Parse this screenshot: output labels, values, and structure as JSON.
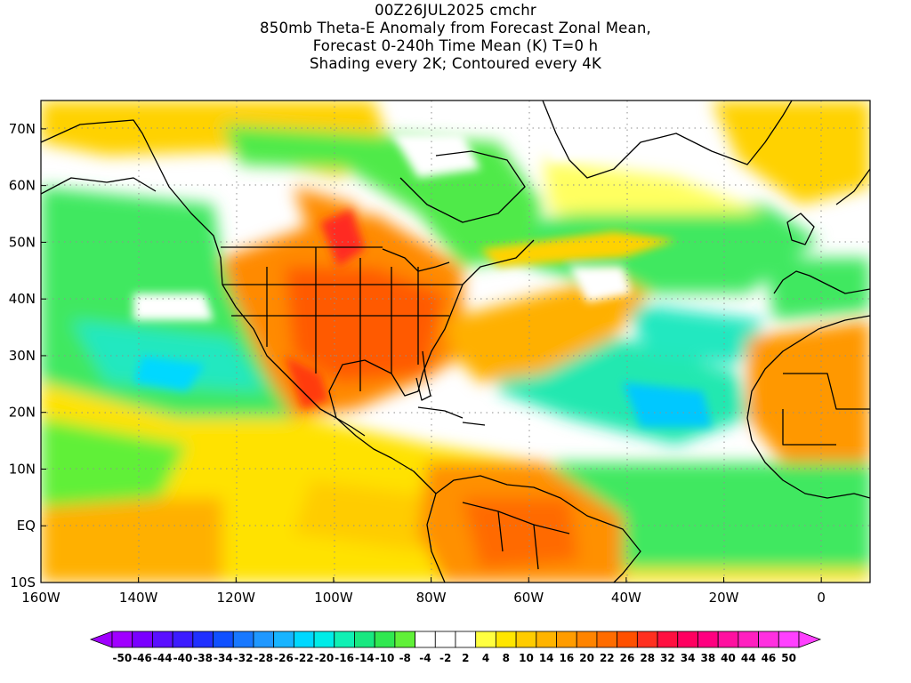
{
  "title": {
    "line1": "00Z26JUL2025 cmchr",
    "line2": "850mb Theta-E Anomaly from Forecast Zonal Mean,",
    "line3": "Forecast 0-240h Time Mean (K) T=0 h",
    "line4": "Shading every 2K; Contoured every 4K"
  },
  "axes": {
    "lon_labels": [
      "160W",
      "140W",
      "120W",
      "100W",
      "80W",
      "60W",
      "40W",
      "20W",
      "0"
    ],
    "lon_values": [
      -160,
      -140,
      -120,
      -100,
      -80,
      -60,
      -40,
      -20,
      0
    ],
    "lat_labels": [
      "70N",
      "60N",
      "50N",
      "40N",
      "30N",
      "20N",
      "10N",
      "EQ",
      "10S"
    ],
    "lat_values": [
      70,
      60,
      50,
      40,
      30,
      20,
      10,
      0,
      -10
    ],
    "lon_range": [
      -160,
      10
    ],
    "lat_range": [
      -10,
      75
    ]
  },
  "colorbar": {
    "labels": [
      "-50",
      "-46",
      "-44",
      "-40",
      "-38",
      "-34",
      "-32",
      "-28",
      "-26",
      "-22",
      "-20",
      "-16",
      "-14",
      "-10",
      "-8",
      "-4",
      "-2",
      "2",
      "4",
      "8",
      "10",
      "14",
      "16",
      "20",
      "22",
      "26",
      "28",
      "32",
      "34",
      "38",
      "40",
      "44",
      "46",
      "50"
    ],
    "colors": [
      "#a000ff",
      "#7a00ff",
      "#5a10ff",
      "#3c1cff",
      "#2030ff",
      "#1050ff",
      "#1878ff",
      "#2098ff",
      "#18b4ff",
      "#00d8ff",
      "#00ece8",
      "#10f0b4",
      "#18e880",
      "#30e850",
      "#60f038",
      "#ffffff",
      "#ffffff",
      "#ffffff",
      "#ffff40",
      "#ffe600",
      "#ffcc00",
      "#ffb400",
      "#ff9c00",
      "#ff8400",
      "#ff6c00",
      "#ff5000",
      "#ff3020",
      "#ff1040",
      "#ff0060",
      "#ff0080",
      "#ff10a0",
      "#ff20c0",
      "#ff30e0",
      "#ff40ff"
    ]
  },
  "colors": {
    "frame": "#000000",
    "grid": "#9a9a9a",
    "coast": "#000000"
  }
}
